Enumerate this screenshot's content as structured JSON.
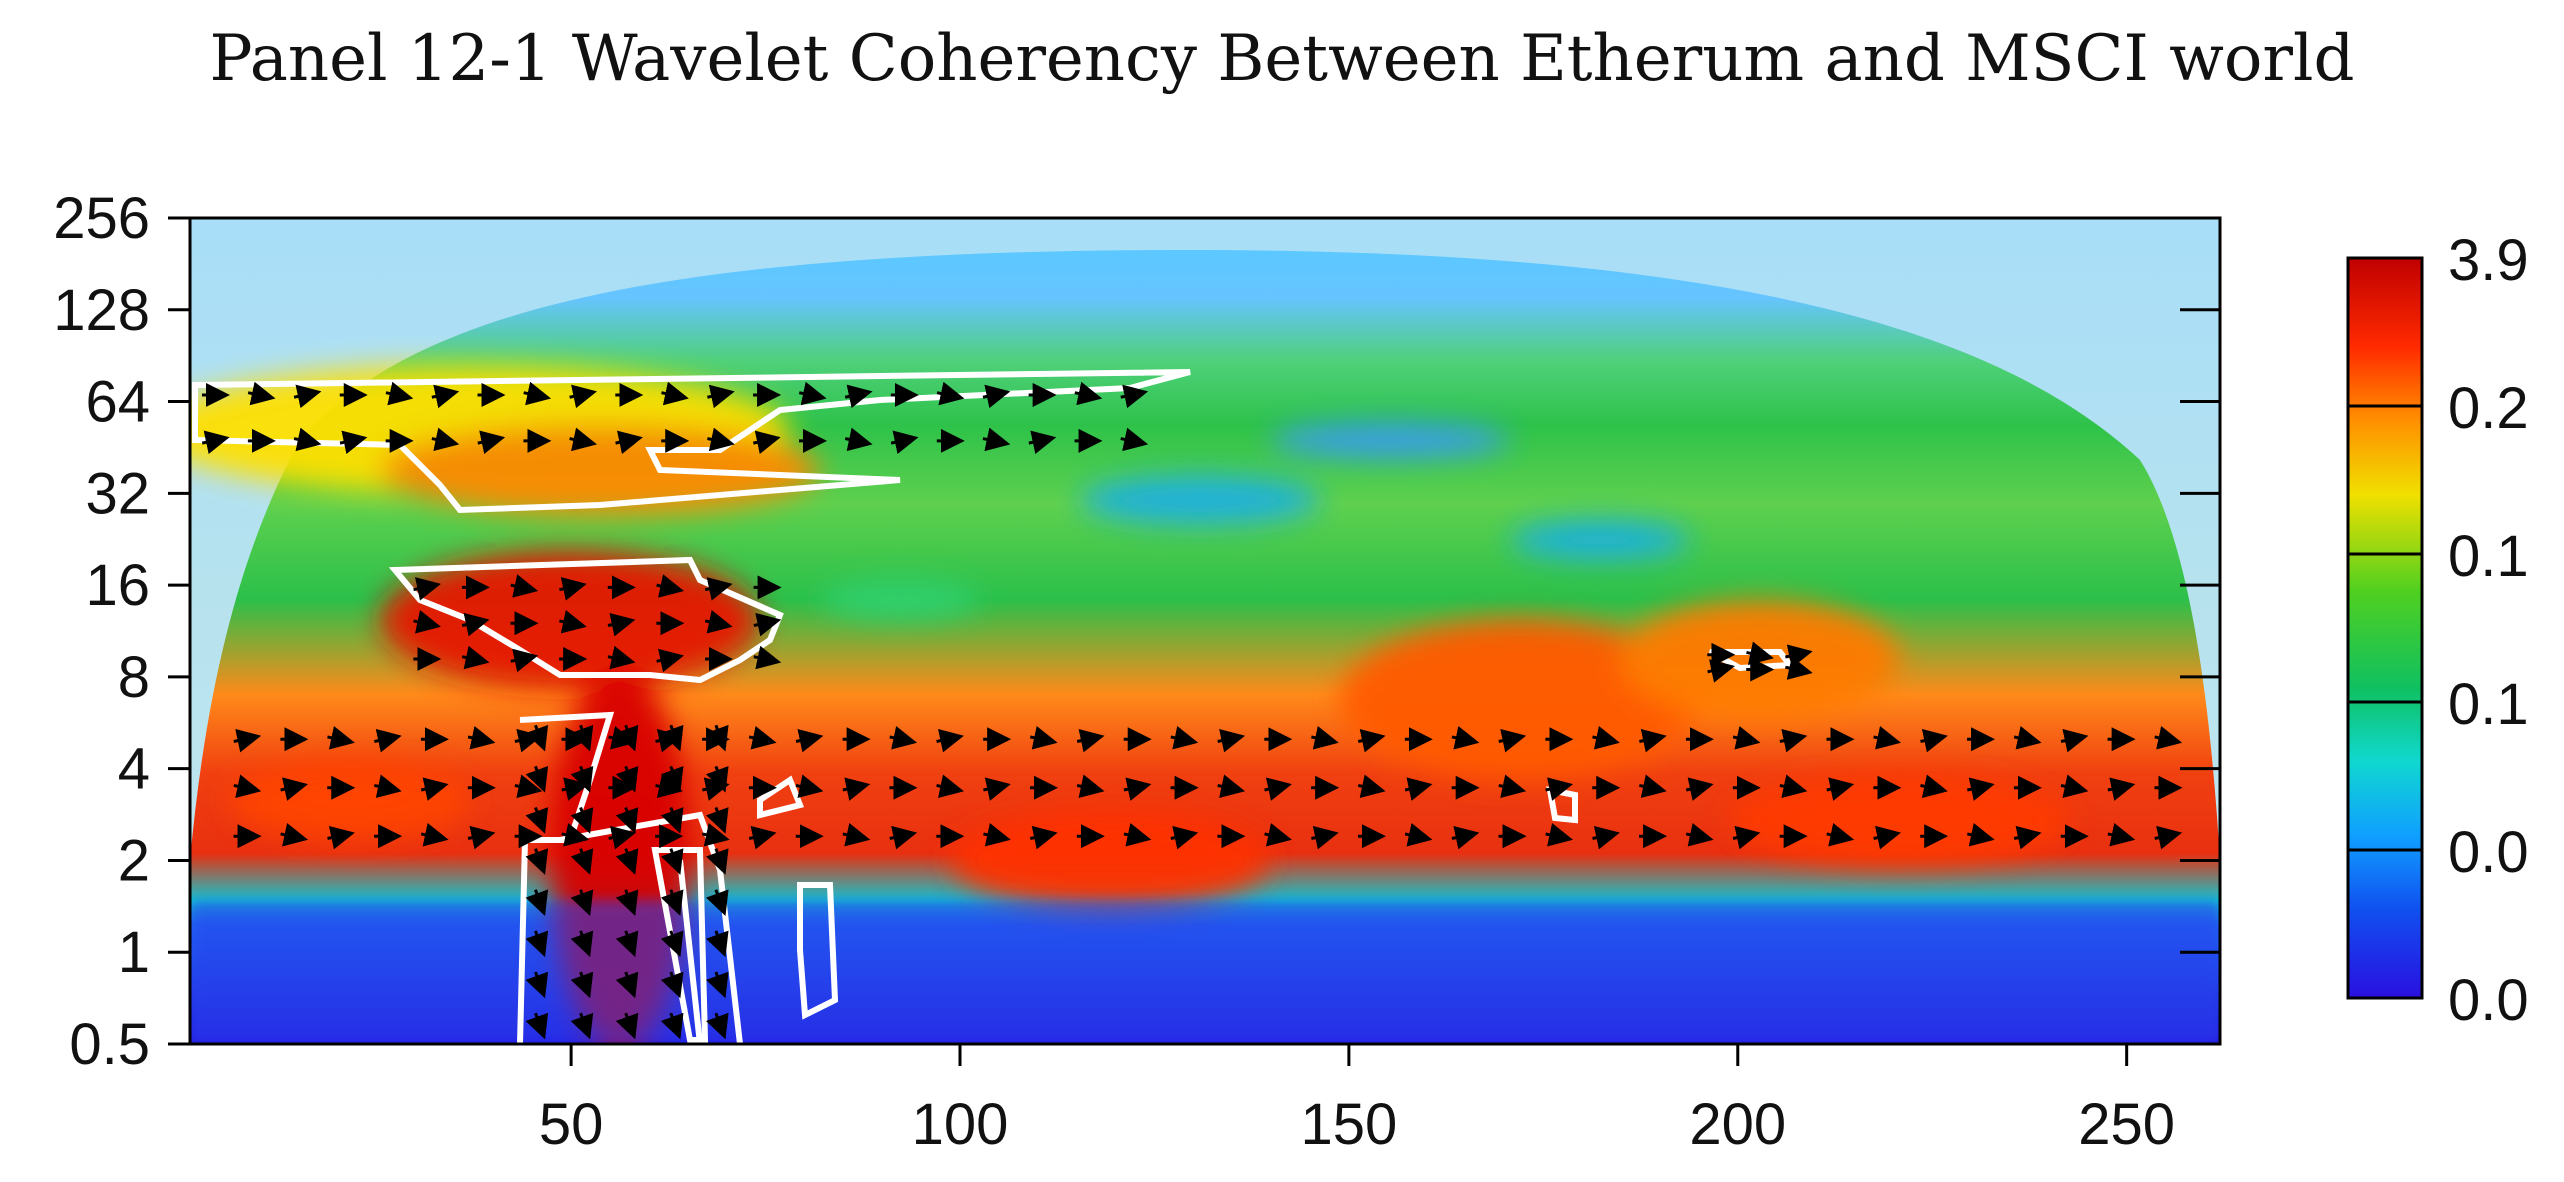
{
  "chart_data": {
    "type": "heatmap",
    "title": "Panel 12-1 Wavelet Coherency Between Etherum and MSCI world",
    "xlabel": "",
    "ylabel": "",
    "x_ticks": [
      50,
      100,
      150,
      200,
      250
    ],
    "xlim": [
      1,
      262
    ],
    "y_ticks": [
      "256",
      "128",
      "64",
      "32",
      "16",
      "8",
      "4",
      "2",
      "1",
      "0.5"
    ],
    "y_tick_values": [
      256,
      128,
      64,
      32,
      16,
      8,
      4,
      2,
      1,
      0.5
    ],
    "ylim": [
      0.5,
      256
    ],
    "y_scale": "log2",
    "colorbar_labels": [
      "3.9",
      "0.2",
      "0.1",
      "0.1",
      "0.0",
      "0.0"
    ],
    "colorbar_colors": [
      "#d40000",
      "#ff7a00",
      "#e8e000",
      "#20c020",
      "#10d0c0",
      "#1060f0",
      "#2010e0"
    ],
    "cone_of_influence": true,
    "significance_contours": "white",
    "phase_arrows": "black",
    "high_coherency_regions": [
      {
        "x": [
          1,
          125
        ],
        "period": [
          40,
          80
        ],
        "level": "high"
      },
      {
        "x": [
          28,
          78
        ],
        "period": [
          8,
          18
        ],
        "level": "very-high"
      },
      {
        "x": [
          43,
          72
        ],
        "period": [
          0.5,
          6
        ],
        "level": "very-high"
      },
      {
        "x": [
          195,
          210
        ],
        "period": [
          8,
          10
        ],
        "level": "high"
      },
      {
        "x": [
          5,
          258
        ],
        "period": [
          2,
          6
        ],
        "level": "high"
      }
    ]
  }
}
